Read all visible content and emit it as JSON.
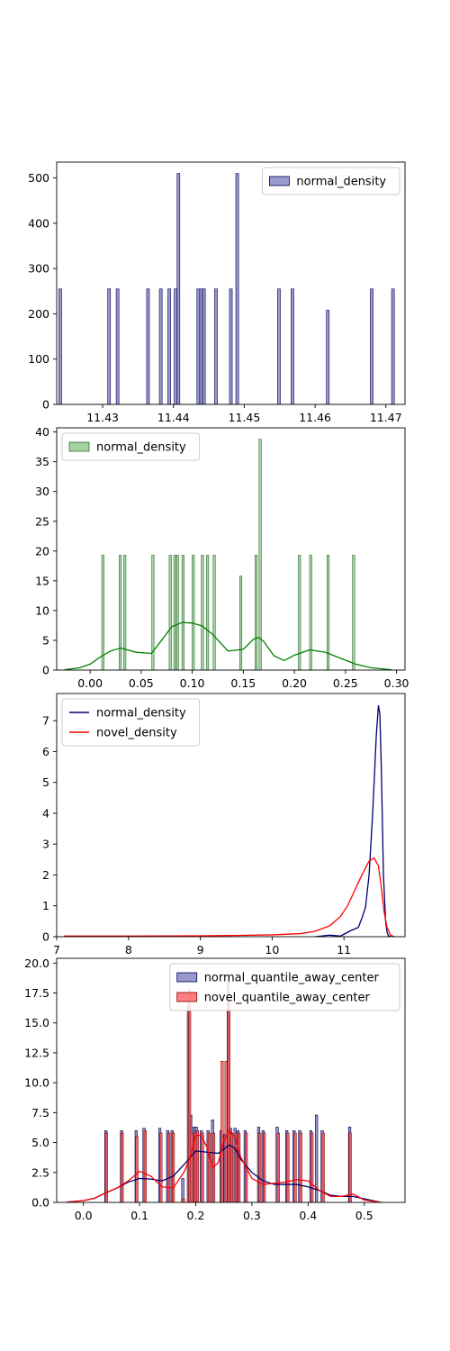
{
  "chart_data": [
    {
      "type": "bar",
      "xlim": [
        11.4235,
        11.4727
      ],
      "ylim": [
        0,
        535
      ],
      "xticks": [
        11.43,
        11.44,
        11.45,
        11.46,
        11.47
      ],
      "xtick_labels": [
        "11.43",
        "11.44",
        "11.45",
        "11.46",
        "11.47"
      ],
      "yticks": [
        0,
        100,
        200,
        300,
        400,
        500
      ],
      "ytick_labels": [
        "0",
        "100",
        "200",
        "300",
        "400",
        "500"
      ],
      "legend": "top-right",
      "series": [
        {
          "name": "normal_density",
          "color": "#8080c0",
          "edge": "#000050",
          "bin_width": 0.00039,
          "x": [
            11.424,
            11.4309,
            11.4321,
            11.4364,
            11.4382,
            11.4394,
            11.4403,
            11.4407,
            11.4435,
            11.4439,
            11.4443,
            11.446,
            11.4481,
            11.449,
            11.4549,
            11.4568,
            11.4618,
            11.468,
            11.471
          ],
          "values": [
            255,
            255,
            255,
            255,
            255,
            255,
            255,
            510,
            255,
            255,
            255,
            255,
            255,
            510,
            255,
            255,
            208,
            255,
            255
          ]
        }
      ]
    },
    {
      "type": "bar",
      "xlim": [
        -0.0327,
        0.3083
      ],
      "ylim": [
        0,
        40.7
      ],
      "xticks": [
        0.0,
        0.05,
        0.1,
        0.15,
        0.2,
        0.25,
        0.3
      ],
      "xtick_labels": [
        "0.00",
        "0.05",
        "0.10",
        "0.15",
        "0.20",
        "0.25",
        "0.30"
      ],
      "yticks": [
        0,
        5,
        10,
        15,
        20,
        25,
        30,
        35,
        40
      ],
      "ytick_labels": [
        "0",
        "5",
        "10",
        "15",
        "20",
        "25",
        "30",
        "35",
        "40"
      ],
      "legend": "top-left",
      "series": [
        {
          "name": "normal_density",
          "color": "#8cc88c",
          "edge": "#2e6b2e",
          "bin_width": 0.0022,
          "x": [
            0.0125,
            0.0295,
            0.034,
            0.0615,
            0.0785,
            0.083,
            0.0855,
            0.091,
            0.101,
            0.11,
            0.115,
            0.1215,
            0.1475,
            0.1625,
            0.1665,
            0.205,
            0.216,
            0.233,
            0.258
          ],
          "values": [
            19.3,
            19.3,
            19.3,
            19.3,
            19.3,
            19.3,
            19.3,
            19.3,
            19.3,
            19.3,
            19.3,
            19.3,
            15.8,
            19.3,
            38.8,
            19.3,
            19.3,
            19.3,
            19.3
          ]
        }
      ],
      "kde": [
        {
          "color": "#008000",
          "x": [
            -0.025,
            -0.01,
            0.0,
            0.01,
            0.02,
            0.03,
            0.045,
            0.06,
            0.07,
            0.08,
            0.09,
            0.1,
            0.11,
            0.12,
            0.135,
            0.15,
            0.16,
            0.165,
            0.17,
            0.18,
            0.19,
            0.2,
            0.215,
            0.23,
            0.245,
            0.26,
            0.275,
            0.295
          ],
          "y": [
            0.05,
            0.4,
            1.0,
            2.2,
            3.2,
            3.7,
            3.0,
            2.8,
            5.0,
            7.3,
            8.0,
            7.9,
            7.4,
            6.0,
            3.2,
            3.5,
            5.2,
            5.5,
            4.8,
            2.4,
            1.6,
            2.5,
            3.4,
            3.0,
            2.0,
            1.0,
            0.4,
            0.05
          ]
        }
      ]
    },
    {
      "type": "line",
      "xlim": [
        7.0,
        11.85
      ],
      "ylim": [
        0,
        7.88
      ],
      "xticks": [
        7,
        8,
        9,
        10,
        11
      ],
      "xtick_labels": [
        "7",
        "8",
        "9",
        "10",
        "11"
      ],
      "yticks": [
        0,
        1,
        2,
        3,
        4,
        5,
        6,
        7
      ],
      "ytick_labels": [
        "0",
        "1",
        "2",
        "3",
        "4",
        "5",
        "6",
        "7"
      ],
      "legend": "top-left",
      "series": [
        {
          "name": "normal_density",
          "color": "#00006e",
          "x": [
            10.6,
            10.8,
            10.95,
            11.0,
            11.1,
            11.2,
            11.25,
            11.3,
            11.35,
            11.4,
            11.45,
            11.48,
            11.5,
            11.52,
            11.55,
            11.58,
            11.6,
            11.62,
            11.65
          ],
          "y": [
            0.0,
            0.05,
            0.02,
            0.08,
            0.2,
            0.3,
            0.6,
            0.95,
            2.0,
            4.0,
            6.5,
            7.5,
            7.2,
            5.5,
            2.0,
            0.5,
            0.15,
            0.03,
            0.0
          ]
        },
        {
          "name": "novel_density",
          "color": "#ff0000",
          "x": [
            7.1,
            8.0,
            9.0,
            9.5,
            10.0,
            10.4,
            10.6,
            10.8,
            10.95,
            11.05,
            11.15,
            11.25,
            11.35,
            11.42,
            11.48,
            11.52,
            11.56,
            11.6,
            11.65,
            11.7
          ],
          "y": [
            0.02,
            0.02,
            0.03,
            0.04,
            0.06,
            0.1,
            0.18,
            0.35,
            0.65,
            1.0,
            1.5,
            2.0,
            2.45,
            2.55,
            2.3,
            1.6,
            0.8,
            0.3,
            0.05,
            0.0
          ]
        }
      ]
    },
    {
      "type": "bar",
      "xlim": [
        -0.0475,
        0.5725
      ],
      "ylim": [
        0,
        20.4
      ],
      "xticks": [
        0.0,
        0.1,
        0.2,
        0.3,
        0.4,
        0.5
      ],
      "xtick_labels": [
        "0.0",
        "0.1",
        "0.2",
        "0.3",
        "0.4",
        "0.5"
      ],
      "yticks": [
        0,
        2.5,
        5,
        7.5,
        10,
        12.5,
        15,
        17.5,
        20
      ],
      "ytick_labels": [
        "0.0",
        "2.5",
        "5.0",
        "7.5",
        "10.0",
        "12.5",
        "15.0",
        "17.5",
        "20.0"
      ],
      "legend": "top-right",
      "series": [
        {
          "name": "normal_quantile_away_center",
          "color": "#8080c0",
          "edge": "#000050",
          "bin_width": 0.0042,
          "x": [
            0.04,
            0.068,
            0.094,
            0.108,
            0.136,
            0.15,
            0.158,
            0.177,
            0.187,
            0.191,
            0.197,
            0.201,
            0.21,
            0.222,
            0.23,
            0.245,
            0.252,
            0.258,
            0.262,
            0.27,
            0.275,
            0.288,
            0.312,
            0.32,
            0.345,
            0.362,
            0.375,
            0.385,
            0.405,
            0.415,
            0.425,
            0.474
          ],
          "values": [
            6.0,
            6.0,
            6.0,
            6.2,
            6.2,
            6.0,
            6.0,
            2.0,
            16.5,
            7.3,
            6.3,
            6.3,
            6.0,
            6.0,
            6.9,
            6.0,
            5.7,
            18.5,
            6.2,
            6.2,
            6.0,
            6.0,
            6.3,
            6.0,
            6.3,
            6.0,
            6.0,
            6.0,
            6.0,
            7.3,
            6.0,
            6.3
          ]
        },
        {
          "name": "novel_quantile_away_center",
          "color": "#ff6060",
          "edge": "#800000",
          "bin_width": 0.0042,
          "x": [
            0.041,
            0.069,
            0.095,
            0.11,
            0.138,
            0.152,
            0.16,
            0.178,
            0.189,
            0.193,
            0.199,
            0.203,
            0.212,
            0.224,
            0.232,
            0.247,
            0.254,
            0.259,
            0.264,
            0.272,
            0.277,
            0.29,
            0.314,
            0.322,
            0.347,
            0.364,
            0.377,
            0.387,
            0.407,
            0.427,
            0.475
          ],
          "values": [
            5.8,
            5.8,
            5.5,
            6.0,
            5.8,
            5.8,
            5.8,
            0.3,
            17.8,
            5.8,
            5.8,
            6.0,
            5.8,
            5.8,
            5.8,
            11.8,
            11.8,
            17.0,
            5.8,
            5.8,
            5.8,
            5.8,
            5.8,
            5.8,
            5.8,
            5.8,
            5.8,
            5.8,
            5.8,
            5.8,
            5.8
          ]
        }
      ],
      "kde": [
        {
          "color": "#00006e",
          "x": [
            -0.03,
            0.0,
            0.02,
            0.04,
            0.06,
            0.08,
            0.1,
            0.12,
            0.14,
            0.16,
            0.18,
            0.2,
            0.22,
            0.24,
            0.26,
            0.27,
            0.28,
            0.3,
            0.32,
            0.34,
            0.36,
            0.38,
            0.4,
            0.42,
            0.44,
            0.46,
            0.48,
            0.5,
            0.53
          ],
          "y": [
            0.02,
            0.15,
            0.35,
            0.8,
            1.2,
            1.7,
            2.0,
            1.95,
            1.8,
            2.2,
            3.2,
            4.3,
            4.2,
            4.1,
            4.8,
            4.5,
            3.6,
            2.5,
            1.8,
            1.5,
            1.5,
            1.5,
            1.3,
            1.0,
            0.6,
            0.5,
            0.5,
            0.3,
            0.0
          ]
        },
        {
          "color": "#ff0000",
          "x": [
            -0.03,
            0.0,
            0.02,
            0.04,
            0.06,
            0.08,
            0.1,
            0.12,
            0.14,
            0.16,
            0.18,
            0.19,
            0.2,
            0.21,
            0.22,
            0.23,
            0.24,
            0.25,
            0.26,
            0.27,
            0.28,
            0.3,
            0.32,
            0.34,
            0.36,
            0.38,
            0.4,
            0.42,
            0.44,
            0.46,
            0.48,
            0.5,
            0.53
          ],
          "y": [
            0.02,
            0.15,
            0.35,
            0.8,
            1.2,
            1.8,
            2.6,
            2.2,
            1.3,
            1.2,
            2.6,
            3.8,
            5.6,
            5.6,
            4.6,
            2.9,
            3.3,
            5.2,
            6.0,
            5.4,
            3.8,
            2.0,
            1.5,
            1.6,
            1.7,
            1.9,
            1.8,
            1.0,
            0.5,
            0.5,
            0.7,
            0.2,
            0.0
          ]
        }
      ]
    }
  ]
}
